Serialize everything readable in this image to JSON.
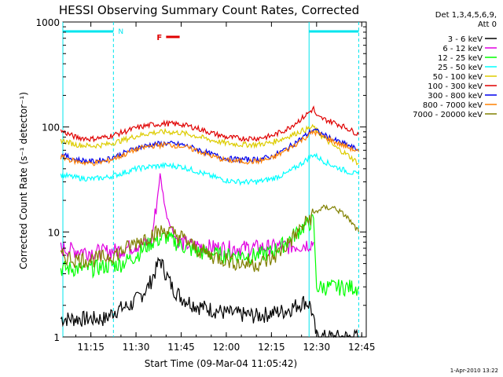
{
  "chart_data": {
    "type": "line",
    "title": "HESSI Observing Summary Count Rates, Corrected",
    "xlabel": "Start Time (09-Mar-04 11:05:42)",
    "ylabel": "Corrected Count Rate (s⁻¹ detector⁻¹)",
    "y_scale": "log",
    "ylim": [
      1,
      1000
    ],
    "xlim": [
      "11:05:42",
      "12:46:30"
    ],
    "x_tick_labels": [
      "11:15",
      "11:30",
      "11:45",
      "12:00",
      "12:15",
      "12:30",
      "12:45"
    ],
    "y_tick_labels": [
      "1",
      "10",
      "100",
      "1000"
    ],
    "legend_title": "Det 1,3,4,5,6,9,\nAtt 0",
    "legend_position": "right",
    "footer_text": "1-Apr-2010 13:22",
    "annotations": {
      "night_marker": "N",
      "flare_marker": "F",
      "night_intervals": [
        [
          "11:05:42",
          "11:22:30"
        ],
        [
          "12:27:30",
          "12:44:00"
        ]
      ],
      "flare_interval": [
        "11:40:00",
        "11:44:30"
      ]
    },
    "series": [
      {
        "name": "3 - 6 keV",
        "color": "#000000",
        "x": [
          "11:05",
          "11:20",
          "11:23",
          "11:28",
          "11:31",
          "11:34",
          "11:36",
          "11:38",
          "11:40",
          "11:42",
          "11:45",
          "11:50",
          "12:00",
          "12:10",
          "12:20",
          "12:26",
          "12:28",
          "12:30",
          "12:44"
        ],
        "y": [
          1.5,
          1.5,
          1.8,
          2.0,
          2.4,
          3.0,
          4.0,
          5.5,
          4.0,
          3.0,
          2.4,
          2.0,
          1.7,
          1.6,
          1.8,
          2.2,
          2.0,
          1.0,
          1.0
        ]
      },
      {
        "name": "6 - 12 keV",
        "color": "#e000e0",
        "x": [
          "11:05",
          "11:15",
          "11:20",
          "11:25",
          "11:30",
          "11:35",
          "11:37",
          "11:38",
          "11:40",
          "11:43",
          "11:45",
          "11:48",
          "12:00",
          "12:15",
          "12:25",
          "12:29"
        ],
        "y": [
          7.0,
          6.5,
          6.5,
          6.8,
          7.5,
          8.0,
          20.0,
          35.0,
          15.0,
          9.0,
          8.0,
          7.5,
          7.0,
          7.2,
          7.5,
          8.0
        ]
      },
      {
        "name": "12 - 25 keV",
        "color": "#00ff00",
        "x": [
          "11:05",
          "11:15",
          "11:25",
          "11:30",
          "11:35",
          "11:40",
          "11:45",
          "11:50",
          "12:00",
          "12:10",
          "12:15",
          "12:20",
          "12:25",
          "12:29",
          "12:30",
          "12:44"
        ],
        "y": [
          4.5,
          4.5,
          5.0,
          6.0,
          8.0,
          9.0,
          7.5,
          6.5,
          6.0,
          6.0,
          6.5,
          8.0,
          11.0,
          13.0,
          3.0,
          3.0
        ]
      },
      {
        "name": "25 - 50 keV",
        "color": "#00ffff",
        "x": [
          "11:05",
          "11:10",
          "11:15",
          "11:20",
          "11:25",
          "11:30",
          "11:35",
          "11:40",
          "11:45",
          "11:50",
          "11:55",
          "12:00",
          "12:05",
          "12:10",
          "12:15",
          "12:20",
          "12:25",
          "12:29",
          "12:32",
          "12:36",
          "12:40",
          "12:44"
        ],
        "y": [
          35,
          33,
          32,
          33,
          36,
          40,
          42,
          43,
          42,
          38,
          34,
          31,
          30,
          30,
          32,
          36,
          45,
          55,
          48,
          42,
          38,
          35
        ]
      },
      {
        "name": "50 - 100 keV",
        "color": "#ddcc00",
        "x": [
          "11:05",
          "11:10",
          "11:15",
          "11:20",
          "11:25",
          "11:30",
          "11:35",
          "11:40",
          "11:45",
          "11:50",
          "11:55",
          "12:00",
          "12:05",
          "12:10",
          "12:15",
          "12:20",
          "12:25",
          "12:29",
          "12:32",
          "12:36",
          "12:40",
          "12:44"
        ],
        "y": [
          75,
          68,
          66,
          68,
          74,
          82,
          88,
          90,
          88,
          82,
          75,
          70,
          68,
          68,
          71,
          80,
          92,
          100,
          80,
          65,
          55,
          45
        ]
      },
      {
        "name": "100 - 300 keV",
        "color": "#e00000",
        "x": [
          "11:05",
          "11:10",
          "11:15",
          "11:20",
          "11:25",
          "11:30",
          "11:35",
          "11:40",
          "11:45",
          "11:50",
          "11:55",
          "12:00",
          "12:05",
          "12:10",
          "12:15",
          "12:20",
          "12:25",
          "12:29",
          "12:30",
          "12:36",
          "12:40",
          "12:44"
        ],
        "y": [
          92,
          80,
          77,
          80,
          88,
          98,
          105,
          108,
          106,
          98,
          88,
          80,
          78,
          78,
          82,
          95,
          120,
          150,
          125,
          110,
          98,
          85
        ]
      },
      {
        "name": "300 - 800 keV",
        "color": "#0000ee",
        "x": [
          "11:05",
          "11:10",
          "11:15",
          "11:20",
          "11:25",
          "11:30",
          "11:35",
          "11:40",
          "11:45",
          "11:50",
          "11:55",
          "12:00",
          "12:05",
          "12:10",
          "12:15",
          "12:20",
          "12:25",
          "12:29",
          "12:32",
          "12:36",
          "12:40",
          "12:44"
        ],
        "y": [
          55,
          49,
          47,
          49,
          55,
          63,
          68,
          70,
          68,
          62,
          55,
          50,
          49,
          49,
          52,
          62,
          78,
          95,
          85,
          75,
          68,
          60
        ]
      },
      {
        "name": "800 - 7000 keV",
        "color": "#ff8000",
        "x": [
          "11:05",
          "11:10",
          "11:15",
          "11:20",
          "11:25",
          "11:30",
          "11:35",
          "11:40",
          "11:45",
          "11:50",
          "11:55",
          "12:00",
          "12:05",
          "12:10",
          "12:15",
          "12:20",
          "12:25",
          "12:29",
          "12:32",
          "12:36",
          "12:40",
          "12:44"
        ],
        "y": [
          52,
          47,
          45,
          47,
          53,
          61,
          66,
          68,
          66,
          60,
          53,
          48,
          47,
          47,
          50,
          60,
          75,
          90,
          82,
          72,
          65,
          58
        ]
      },
      {
        "name": "7000 - 20000 keV",
        "color": "#808000",
        "x": [
          "11:05",
          "11:10",
          "11:15",
          "11:20",
          "11:25",
          "11:30",
          "11:35",
          "11:40",
          "11:45",
          "11:50",
          "11:55",
          "12:00",
          "12:05",
          "12:10",
          "12:15",
          "12:20",
          "12:25",
          "12:29",
          "12:32",
          "12:36",
          "12:40",
          "12:44"
        ],
        "y": [
          6.0,
          5.5,
          5.5,
          5.8,
          6.5,
          8.0,
          9.5,
          10.5,
          9.0,
          7.0,
          6.0,
          5.5,
          5.0,
          5.0,
          5.5,
          7.5,
          11.0,
          15.0,
          17.0,
          17.0,
          14.0,
          10.0
        ]
      }
    ]
  }
}
